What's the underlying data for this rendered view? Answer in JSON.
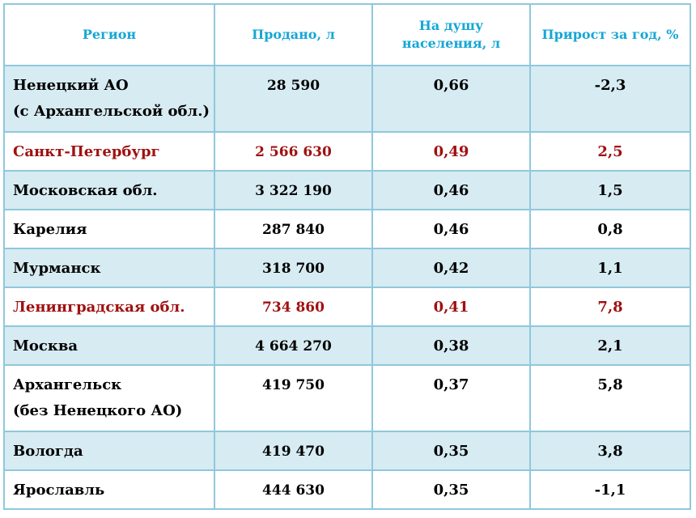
{
  "header": {
    "region": "Регион",
    "sold": "Продано, л",
    "per_capita_line1": "На душу",
    "per_capita_line2": "населения, л",
    "growth": "Прирост за год, %"
  },
  "rows": [
    {
      "region": [
        "Ненецкий АО",
        "(с Архангельской обл.)"
      ],
      "sold": "28 590",
      "per_capita": "0,66",
      "growth": "-2,3",
      "shade": true,
      "highlight": false
    },
    {
      "region": [
        "Санкт-Петербург"
      ],
      "sold": "2 566 630",
      "per_capita": "0,49",
      "growth": "2,5",
      "shade": false,
      "highlight": true
    },
    {
      "region": [
        "Московская обл."
      ],
      "sold": "3 322 190",
      "per_capita": "0,46",
      "growth": "1,5",
      "shade": true,
      "highlight": false
    },
    {
      "region": [
        "Карелия"
      ],
      "sold": "287 840",
      "per_capita": "0,46",
      "growth": "0,8",
      "shade": false,
      "highlight": false
    },
    {
      "region": [
        "Мурманск"
      ],
      "sold": "318 700",
      "per_capita": "0,42",
      "growth": "1,1",
      "shade": true,
      "highlight": false
    },
    {
      "region": [
        "Ленинградская обл."
      ],
      "sold": "734 860",
      "per_capita": "0,41",
      "growth": "7,8",
      "shade": false,
      "highlight": true
    },
    {
      "region": [
        "Москва"
      ],
      "sold": "4 664 270",
      "per_capita": "0,38",
      "growth": "2,1",
      "shade": true,
      "highlight": false
    },
    {
      "region": [
        "Архангельск",
        "(без Ненецкого АО)"
      ],
      "sold": "419 750",
      "per_capita": "0,37",
      "growth": "5,8",
      "shade": false,
      "highlight": false
    },
    {
      "region": [
        "Вологда"
      ],
      "sold": "419 470",
      "per_capita": "0,35",
      "growth": "3,8",
      "shade": true,
      "highlight": false
    },
    {
      "region": [
        "Ярославль"
      ],
      "sold": "444 630",
      "per_capita": "0,35",
      "growth": "-1,1",
      "shade": false,
      "highlight": false
    }
  ],
  "colors": {
    "header_text": "#16a7d6",
    "highlight_text": "#a01010",
    "shaded_row": "#d6ebf2",
    "border": "#8fc8dc"
  }
}
